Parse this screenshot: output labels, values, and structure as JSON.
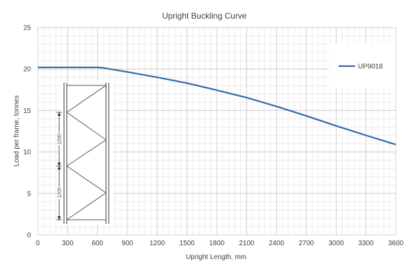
{
  "chart_data": {
    "type": "line",
    "title": "Upright Buckling Curve",
    "xlabel": "Upright Length, mm",
    "ylabel": "Load per frame, tonnes",
    "xlim": [
      0,
      3600
    ],
    "ylim": [
      0,
      25
    ],
    "x_ticks": [
      0,
      300,
      600,
      900,
      1200,
      1500,
      1800,
      2100,
      2400,
      2700,
      3000,
      3300,
      3600
    ],
    "y_ticks": [
      0,
      5,
      10,
      15,
      20,
      25
    ],
    "grid": true,
    "minor_grid": true,
    "legend_position": "top-right",
    "series": [
      {
        "name": "UP9018",
        "color": "#2e6aa6",
        "x": [
          0,
          300,
          600,
          650,
          700,
          900,
          1200,
          1500,
          1800,
          2100,
          2400,
          2700,
          3000,
          3300,
          3600
        ],
        "y": [
          20.2,
          20.2,
          20.2,
          20.15,
          20.05,
          19.65,
          19.0,
          18.3,
          17.45,
          16.55,
          15.5,
          14.35,
          13.15,
          12.0,
          10.9
        ]
      }
    ]
  },
  "diagram": {
    "dimension_labels": [
      "1200",
      "1200"
    ]
  }
}
